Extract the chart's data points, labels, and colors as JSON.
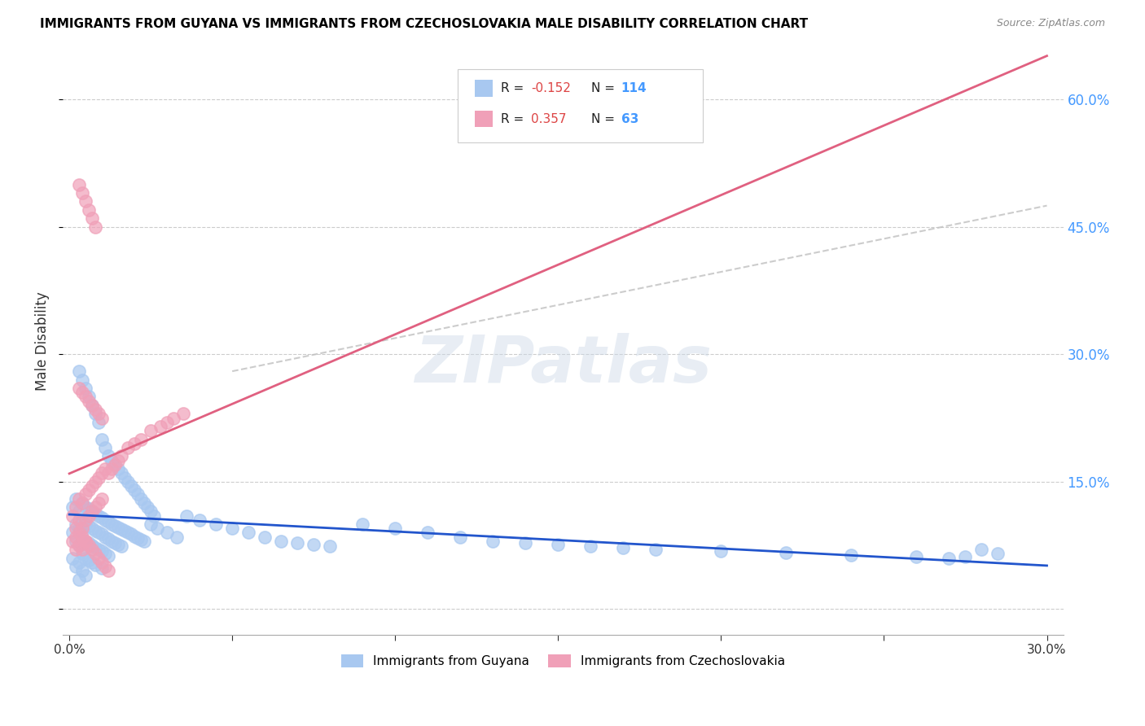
{
  "title": "IMMIGRANTS FROM GUYANA VS IMMIGRANTS FROM CZECHOSLOVAKIA MALE DISABILITY CORRELATION CHART",
  "source": "Source: ZipAtlas.com",
  "ylabel": "Male Disability",
  "ytick_values": [
    0.0,
    0.15,
    0.3,
    0.45,
    0.6
  ],
  "xtick_values": [
    0.0,
    0.05,
    0.1,
    0.15,
    0.2,
    0.25,
    0.3
  ],
  "xlim": [
    -0.002,
    0.305
  ],
  "ylim": [
    -0.03,
    0.66
  ],
  "r_guyana": -0.152,
  "n_guyana": 114,
  "r_czech": 0.357,
  "n_czech": 63,
  "color_guyana": "#a8c8f0",
  "color_czech": "#f0a0b8",
  "trendline_guyana_color": "#2255cc",
  "trendline_czech_color": "#e06080",
  "ref_line_color": "#cccccc",
  "legend_label_guyana": "Immigrants from Guyana",
  "legend_label_czech": "Immigrants from Czechoslovakia",
  "watermark": "ZIPatlas",
  "guyana_x": [
    0.001,
    0.001,
    0.001,
    0.002,
    0.002,
    0.002,
    0.002,
    0.003,
    0.003,
    0.003,
    0.003,
    0.003,
    0.004,
    0.004,
    0.004,
    0.004,
    0.004,
    0.005,
    0.005,
    0.005,
    0.005,
    0.005,
    0.006,
    0.006,
    0.006,
    0.006,
    0.007,
    0.007,
    0.007,
    0.007,
    0.008,
    0.008,
    0.008,
    0.008,
    0.009,
    0.009,
    0.009,
    0.01,
    0.01,
    0.01,
    0.01,
    0.011,
    0.011,
    0.011,
    0.012,
    0.012,
    0.012,
    0.013,
    0.013,
    0.014,
    0.014,
    0.015,
    0.015,
    0.016,
    0.016,
    0.017,
    0.018,
    0.019,
    0.02,
    0.021,
    0.022,
    0.023,
    0.025,
    0.027,
    0.03,
    0.033,
    0.036,
    0.04,
    0.045,
    0.05,
    0.055,
    0.06,
    0.065,
    0.07,
    0.075,
    0.08,
    0.09,
    0.1,
    0.11,
    0.12,
    0.13,
    0.14,
    0.15,
    0.16,
    0.17,
    0.18,
    0.2,
    0.22,
    0.24,
    0.26,
    0.27,
    0.275,
    0.28,
    0.285,
    0.003,
    0.004,
    0.005,
    0.006,
    0.007,
    0.008,
    0.009,
    0.01,
    0.011,
    0.012,
    0.013,
    0.014,
    0.015,
    0.016,
    0.017,
    0.018,
    0.019,
    0.02,
    0.021,
    0.022,
    0.023,
    0.024,
    0.025,
    0.026
  ],
  "guyana_y": [
    0.12,
    0.09,
    0.06,
    0.13,
    0.1,
    0.08,
    0.05,
    0.115,
    0.095,
    0.075,
    0.055,
    0.035,
    0.125,
    0.105,
    0.085,
    0.065,
    0.045,
    0.12,
    0.1,
    0.08,
    0.06,
    0.04,
    0.118,
    0.098,
    0.078,
    0.058,
    0.115,
    0.095,
    0.075,
    0.055,
    0.112,
    0.092,
    0.072,
    0.052,
    0.11,
    0.09,
    0.07,
    0.108,
    0.088,
    0.068,
    0.048,
    0.105,
    0.085,
    0.065,
    0.103,
    0.083,
    0.063,
    0.1,
    0.08,
    0.098,
    0.078,
    0.096,
    0.076,
    0.094,
    0.074,
    0.092,
    0.09,
    0.088,
    0.086,
    0.084,
    0.082,
    0.08,
    0.1,
    0.095,
    0.09,
    0.085,
    0.11,
    0.105,
    0.1,
    0.095,
    0.09,
    0.085,
    0.08,
    0.078,
    0.076,
    0.074,
    0.1,
    0.095,
    0.09,
    0.085,
    0.08,
    0.078,
    0.076,
    0.074,
    0.072,
    0.07,
    0.068,
    0.066,
    0.064,
    0.062,
    0.06,
    0.062,
    0.07,
    0.065,
    0.28,
    0.27,
    0.26,
    0.25,
    0.24,
    0.23,
    0.22,
    0.2,
    0.19,
    0.18,
    0.175,
    0.17,
    0.165,
    0.16,
    0.155,
    0.15,
    0.145,
    0.14,
    0.135,
    0.13,
    0.125,
    0.12,
    0.115,
    0.11
  ],
  "czech_x": [
    0.001,
    0.001,
    0.002,
    0.002,
    0.002,
    0.003,
    0.003,
    0.003,
    0.004,
    0.004,
    0.004,
    0.005,
    0.005,
    0.005,
    0.006,
    0.006,
    0.007,
    0.007,
    0.008,
    0.008,
    0.009,
    0.009,
    0.01,
    0.01,
    0.011,
    0.012,
    0.013,
    0.014,
    0.015,
    0.016,
    0.018,
    0.02,
    0.022,
    0.025,
    0.028,
    0.03,
    0.032,
    0.035,
    0.003,
    0.004,
    0.005,
    0.006,
    0.007,
    0.008,
    0.009,
    0.01,
    0.003,
    0.004,
    0.005,
    0.006,
    0.007,
    0.008,
    0.002,
    0.003,
    0.004,
    0.005,
    0.006,
    0.007,
    0.008,
    0.009,
    0.01,
    0.011,
    0.012
  ],
  "czech_y": [
    0.11,
    0.08,
    0.12,
    0.095,
    0.07,
    0.13,
    0.105,
    0.075,
    0.125,
    0.095,
    0.07,
    0.135,
    0.105,
    0.08,
    0.14,
    0.11,
    0.145,
    0.115,
    0.15,
    0.12,
    0.155,
    0.125,
    0.16,
    0.13,
    0.165,
    0.16,
    0.165,
    0.17,
    0.175,
    0.18,
    0.19,
    0.195,
    0.2,
    0.21,
    0.215,
    0.22,
    0.225,
    0.23,
    0.26,
    0.255,
    0.25,
    0.245,
    0.24,
    0.235,
    0.23,
    0.225,
    0.5,
    0.49,
    0.48,
    0.47,
    0.46,
    0.45,
    0.085,
    0.09,
    0.085,
    0.08,
    0.075,
    0.07,
    0.065,
    0.06,
    0.055,
    0.05,
    0.045
  ]
}
